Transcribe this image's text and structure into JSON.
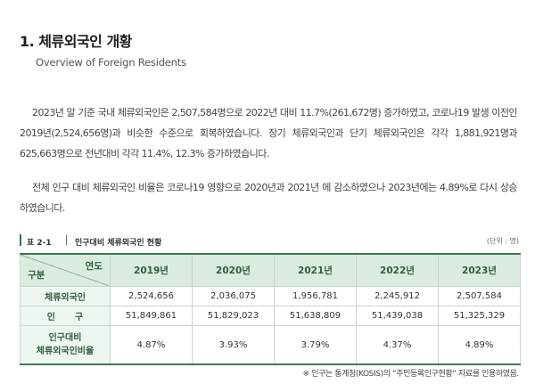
{
  "section": {
    "title": "1. 체류외국인 개황",
    "subtitle": "Overview of Foreign Residents"
  },
  "paragraphs": [
    "2023년 말 기준 국내 체류외국인은 2,507,584명으로 2022년 대비 11.7%(261,672명) 증가하였고, 코로나19 발생 이전인 2019년(2,524,656명)과 비슷한 수준으로 회복하였습니다. 장기 체류외국인과 단기 체류외국인은 각각 1,881,921명과 625,663명으로 전년대비 각각 11.4%, 12.3% 증가하였습니다.",
    "전체 인구 대비 체류외국인 비율은 코로나19 영향으로 2020년과 2021년 에 감소하였으나 2023년에는 4.89%로 다시 상승하였습니다."
  ],
  "table": {
    "number": "표 2-1",
    "title": "인구대비 체류외국인 현황",
    "unit": "(단위 : 명)",
    "corner_top": "연도",
    "corner_bottom": "구분",
    "years": [
      "2019년",
      "2020년",
      "2021년",
      "2022년",
      "2023년"
    ],
    "rows": [
      {
        "label": "체류외국인",
        "values": [
          "2,524,656",
          "2,036,075",
          "1,956,781",
          "2,245,912",
          "2,507,584"
        ]
      },
      {
        "label": "인구",
        "values": [
          "51,849,861",
          "51,829,023",
          "51,638,809",
          "51,439,038",
          "51,325,329"
        ]
      },
      {
        "label_line1": "인구대비",
        "label_line2": "체류외국인비율",
        "values": [
          "4.87%",
          "3.93%",
          "3.79%",
          "4.37%",
          "4.89%"
        ]
      }
    ],
    "note": "※ 인구는 통계청(KOSIS)의 “주민등록인구현황” 자료를 인용하였음."
  }
}
